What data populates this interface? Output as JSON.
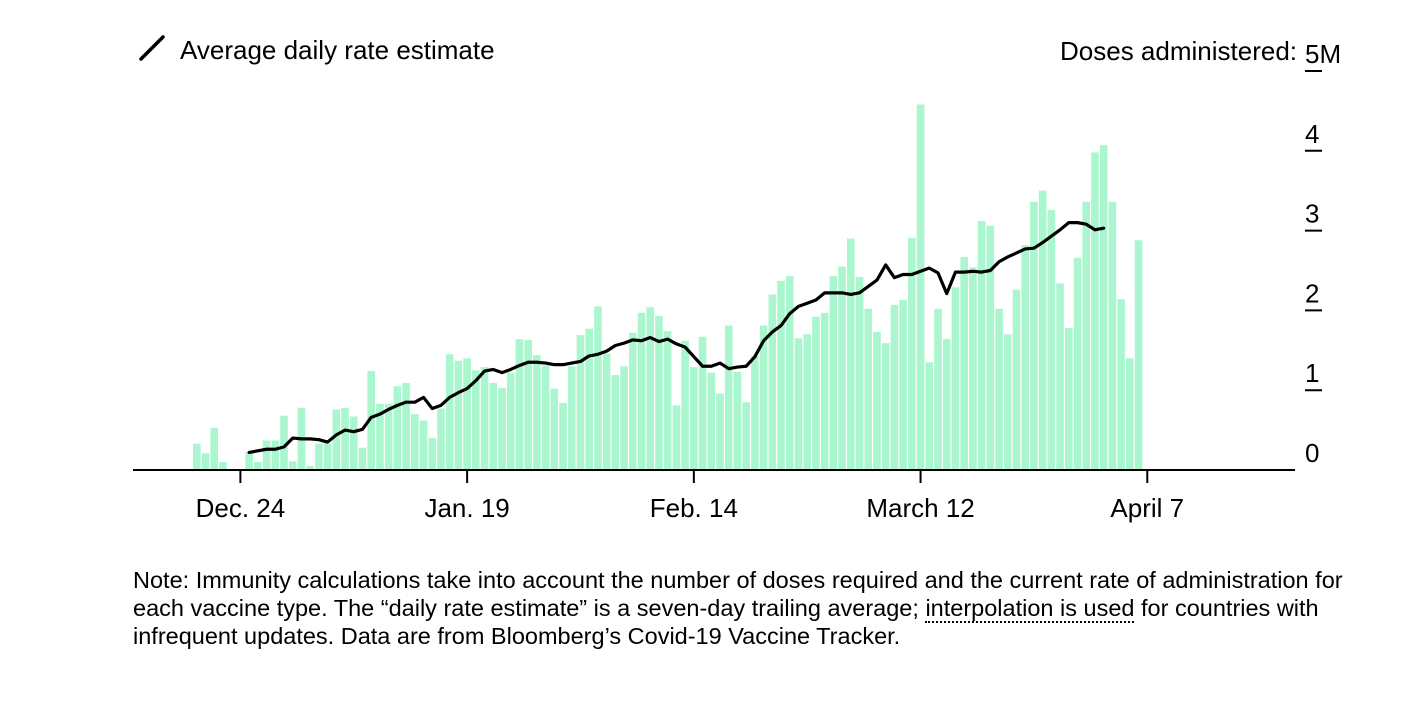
{
  "chart_data": {
    "type": "bar",
    "legend": {
      "label": "Average daily rate estimate",
      "placement": "top-left"
    },
    "y_axis": {
      "label": "Doses administered:",
      "ticks": [
        "0",
        "1",
        "2",
        "3",
        "4",
        "5M"
      ],
      "tick_values": [
        0,
        1,
        2,
        3,
        4,
        5
      ],
      "ylim": [
        0,
        5
      ],
      "position": "right"
    },
    "x_ticks": [
      {
        "label": "Dec. 24",
        "index": 5
      },
      {
        "label": "Jan. 19",
        "index": 31
      },
      {
        "label": "Feb. 14",
        "index": 57
      },
      {
        "label": "March 12",
        "index": 83
      },
      {
        "label": "April 7",
        "index": 109
      }
    ],
    "bar_color": "#aaf7cf",
    "line_color": "#000000",
    "series": [
      {
        "name": "Doses administered",
        "kind": "bar",
        "values": [
          0.33,
          0.21,
          0.53,
          0.1,
          0,
          0,
          0.22,
          0.1,
          0.37,
          0.37,
          0.68,
          0.11,
          0.78,
          0.05,
          0.33,
          0.33,
          0.76,
          0.78,
          0.67,
          0.28,
          1.24,
          0.83,
          0.83,
          1.05,
          1.09,
          0.7,
          0.62,
          0.4,
          0.77,
          1.45,
          1.37,
          1.4,
          1.25,
          1.29,
          1.09,
          1.03,
          1.22,
          1.64,
          1.63,
          1.44,
          1.31,
          1.02,
          0.84,
          1.3,
          1.69,
          1.77,
          2.05,
          1.46,
          1.19,
          1.3,
          1.72,
          1.97,
          2.04,
          1.93,
          1.74,
          0.81,
          1.62,
          1.29,
          1.67,
          1.22,
          0.96,
          1.81,
          1.23,
          0.85,
          1.43,
          1.81,
          2.2,
          2.37,
          2.43,
          1.65,
          1.7,
          1.92,
          1.97,
          2.43,
          2.55,
          2.9,
          2.42,
          2.02,
          1.73,
          1.59,
          2.07,
          2.13,
          2.91,
          4.58,
          1.35,
          2.02,
          1.64,
          2.29,
          2.67,
          2.54,
          3.12,
          3.06,
          2.02,
          1.7,
          2.26,
          2.82,
          3.36,
          3.5,
          3.26,
          2.34,
          1.78,
          2.66,
          3.36,
          3.98,
          4.07,
          3.36,
          2.14,
          1.4,
          2.88
        ],
        "color": "#aaf7cf"
      },
      {
        "name": "Average daily rate estimate",
        "kind": "line",
        "start_index": 6,
        "values": [
          0.22,
          0.24,
          0.26,
          0.26,
          0.29,
          0.4,
          0.39,
          0.39,
          0.38,
          0.35,
          0.44,
          0.5,
          0.48,
          0.51,
          0.66,
          0.7,
          0.76,
          0.81,
          0.85,
          0.85,
          0.91,
          0.77,
          0.81,
          0.91,
          0.97,
          1.02,
          1.12,
          1.24,
          1.26,
          1.22,
          1.26,
          1.31,
          1.35,
          1.35,
          1.34,
          1.32,
          1.32,
          1.34,
          1.36,
          1.43,
          1.45,
          1.49,
          1.56,
          1.59,
          1.63,
          1.62,
          1.66,
          1.61,
          1.64,
          1.58,
          1.54,
          1.42,
          1.3,
          1.3,
          1.34,
          1.27,
          1.29,
          1.3,
          1.42,
          1.62,
          1.73,
          1.81,
          1.96,
          2.05,
          2.09,
          2.13,
          2.22,
          2.22,
          2.22,
          2.2,
          2.22,
          2.3,
          2.38,
          2.57,
          2.41,
          2.45,
          2.45,
          2.49,
          2.53,
          2.47,
          2.21,
          2.48,
          2.48,
          2.49,
          2.48,
          2.5,
          2.61,
          2.67,
          2.72,
          2.77,
          2.78,
          2.85,
          2.93,
          3.01,
          3.1,
          3.1,
          3.08,
          3.01,
          3.03
        ]
      }
    ]
  },
  "note": {
    "before_link": "Note: Immunity calculations take into account the number of doses required and the current rate of administration for each vaccine type. The “daily rate estimate” is a seven-day trailing average; ",
    "link": "interpolation is used",
    "after_link": " for countries with infrequent updates. Data are from Bloomberg’s Covid-19 Vaccine Tracker."
  }
}
